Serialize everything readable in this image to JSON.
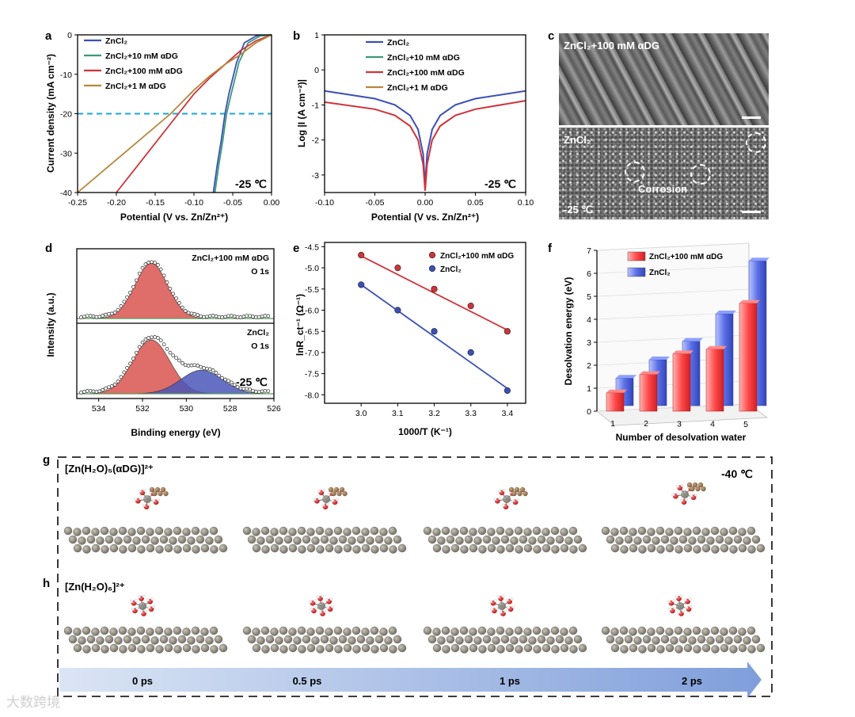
{
  "panel_letters": [
    "a",
    "b",
    "c",
    "d",
    "e",
    "f",
    "g",
    "h"
  ],
  "chart_data": [
    {
      "id": "a",
      "type": "line",
      "xlabel": "Potential (V vs. Zn/Zn²⁺)",
      "ylabel": "Current density (mA cm⁻²)",
      "xlim": [
        -0.25,
        0.0
      ],
      "ylim": [
        -40,
        0
      ],
      "xticks": [
        "-0.25",
        "-0.20",
        "-0.15",
        "-0.10",
        "-0.05",
        "0.00"
      ],
      "yticks": [
        "0",
        "-10",
        "-20",
        "-30",
        "-40"
      ],
      "annotation": "-25 ℃",
      "reference_line_y": -20,
      "series": [
        {
          "name": "ZnCl₂",
          "color": "#3b4fb8",
          "points": [
            [
              0.0,
              0
            ],
            [
              -0.02,
              -0.3
            ],
            [
              -0.035,
              -2
            ],
            [
              -0.045,
              -7
            ],
            [
              -0.055,
              -15
            ],
            [
              -0.06,
              -20
            ],
            [
              -0.065,
              -27
            ],
            [
              -0.07,
              -33
            ],
            [
              -0.075,
              -40
            ]
          ]
        },
        {
          "name": "ZnCl₂+10 mM αDG",
          "color": "#3a9a7a",
          "points": [
            [
              0.0,
              0
            ],
            [
              -0.015,
              -0.3
            ],
            [
              -0.03,
              -2
            ],
            [
              -0.042,
              -7
            ],
            [
              -0.052,
              -15
            ],
            [
              -0.058,
              -20
            ],
            [
              -0.063,
              -27
            ],
            [
              -0.068,
              -33
            ],
            [
              -0.073,
              -40
            ]
          ]
        },
        {
          "name": "ZnCl₂+100 mM αDG",
          "color": "#d0333a",
          "points": [
            [
              0.0,
              0
            ],
            [
              -0.02,
              -1.5
            ],
            [
              -0.04,
              -4
            ],
            [
              -0.06,
              -7.5
            ],
            [
              -0.08,
              -11
            ],
            [
              -0.1,
              -15
            ],
            [
              -0.12,
              -20
            ],
            [
              -0.16,
              -30
            ],
            [
              -0.2,
              -40
            ]
          ]
        },
        {
          "name": "ZnCl₂+1 M αDG",
          "color": "#b8863b",
          "points": [
            [
              0.0,
              0
            ],
            [
              -0.02,
              -2
            ],
            [
              -0.04,
              -5
            ],
            [
              -0.06,
              -7.5
            ],
            [
              -0.08,
              -10.5
            ],
            [
              -0.1,
              -14
            ],
            [
              -0.13,
              -20
            ],
            [
              -0.19,
              -30
            ],
            [
              -0.25,
              -40
            ]
          ]
        }
      ]
    },
    {
      "id": "b",
      "type": "line",
      "xlabel": "Potential (V vs. Zn/Zn²⁺)",
      "ylabel": "Log |I (A cm⁻²)|",
      "xlim": [
        -0.1,
        0.1
      ],
      "ylim": [
        -3.5,
        1
      ],
      "xticks": [
        "-0.10",
        "-0.05",
        "0.00",
        "0.05",
        "0.10"
      ],
      "yticks": [
        "1",
        "0",
        "-1",
        "-2",
        "-3"
      ],
      "annotation": "-25 ℃",
      "series": [
        {
          "name": "ZnCl₂",
          "color": "#3b4fb8",
          "points": [
            [
              -0.1,
              -0.6
            ],
            [
              -0.05,
              -0.82
            ],
            [
              -0.03,
              -1.0
            ],
            [
              -0.015,
              -1.3
            ],
            [
              -0.007,
              -1.7
            ],
            [
              -0.002,
              -2.4
            ],
            [
              0.0,
              -3.3
            ],
            [
              0.002,
              -2.4
            ],
            [
              0.007,
              -1.7
            ],
            [
              0.015,
              -1.3
            ],
            [
              0.03,
              -1.0
            ],
            [
              0.05,
              -0.82
            ],
            [
              0.1,
              -0.6
            ]
          ]
        },
        {
          "name": "ZnCl₂+10 mM αDG",
          "color": "#3a9a7a",
          "points": []
        },
        {
          "name": "ZnCl₂+100 mM αDG",
          "color": "#d0333a",
          "points": [
            [
              -0.1,
              -0.92
            ],
            [
              -0.05,
              -1.12
            ],
            [
              -0.03,
              -1.3
            ],
            [
              -0.015,
              -1.6
            ],
            [
              -0.007,
              -2.0
            ],
            [
              -0.002,
              -2.7
            ],
            [
              0.0,
              -3.45
            ],
            [
              0.002,
              -2.7
            ],
            [
              0.007,
              -2.0
            ],
            [
              0.015,
              -1.6
            ],
            [
              0.03,
              -1.3
            ],
            [
              0.05,
              -1.12
            ],
            [
              0.1,
              -0.88
            ]
          ]
        },
        {
          "name": "ZnCl₂+1 M αDG",
          "color": "#b8863b",
          "points": []
        }
      ]
    },
    {
      "id": "d",
      "type": "line",
      "xlabel": "Binding energy (eV)",
      "ylabel": "Intensity (a.u.)",
      "xlim": [
        535,
        526
      ],
      "xticks": [
        "534",
        "532",
        "530",
        "528",
        "526"
      ],
      "annotation": "-25 ℃",
      "subpanels": [
        {
          "label_line1": "ZnCl₂+100 mM αDG",
          "label_line2": "O 1s",
          "peaks": [
            {
              "center": 531.6,
              "width": 0.75,
              "height": 0.85,
              "color": "#d9534f"
            }
          ]
        },
        {
          "label_line1": "ZnCl₂",
          "label_line2": "O 1s",
          "peaks": [
            {
              "center": 531.6,
              "width": 0.85,
              "height": 0.82,
              "color": "#d9534f"
            },
            {
              "center": 529.3,
              "width": 0.95,
              "height": 0.36,
              "color": "#4a56b8"
            }
          ]
        }
      ]
    },
    {
      "id": "e",
      "type": "scatter",
      "xlabel": "1000/T (K⁻¹)",
      "ylabel": "lnR_ct⁻¹ (Ω⁻¹)",
      "xlim": [
        2.9,
        3.45
      ],
      "ylim": [
        -8.2,
        -4.4
      ],
      "xticks": [
        "3.0",
        "3.1",
        "3.2",
        "3.3",
        "3.4"
      ],
      "yticks": [
        "-4.5",
        "-5.0",
        "-5.5",
        "-6.0",
        "-6.5",
        "-7.0",
        "-7.5",
        "-8.0"
      ],
      "series": [
        {
          "name": "ZnCl₂+100 mM αDG",
          "color": "#d0333a",
          "x": [
            3.0,
            3.1,
            3.2,
            3.3,
            3.4
          ],
          "y": [
            -4.7,
            -5.0,
            -5.5,
            -5.9,
            -6.5
          ],
          "fit": [
            [
              3.0,
              -4.72
            ],
            [
              3.4,
              -6.47
            ]
          ]
        },
        {
          "name": "ZnCl₂",
          "color": "#3b4fb8",
          "x": [
            3.0,
            3.1,
            3.2,
            3.3,
            3.4
          ],
          "y": [
            -5.4,
            -6.0,
            -6.5,
            -7.0,
            -7.9
          ],
          "fit": [
            [
              3.0,
              -5.4
            ],
            [
              3.4,
              -7.85
            ]
          ]
        }
      ]
    },
    {
      "id": "f",
      "type": "bar",
      "xlabel": "Number of desolvation water",
      "ylabel": "Desolvation energy (eV)",
      "categories": [
        "1",
        "2",
        "3",
        "4",
        "5"
      ],
      "ylim": [
        0,
        7
      ],
      "yticks": [
        "0",
        "1",
        "2",
        "3",
        "4",
        "5",
        "6",
        "7"
      ],
      "series": [
        {
          "name": "ZnCl₂+100 mM αDG",
          "color": "#e8383c",
          "values": [
            0.8,
            1.6,
            2.5,
            2.7,
            4.7
          ]
        },
        {
          "name": "ZnCl₂",
          "color": "#4a63d8",
          "values": [
            1.2,
            2.0,
            2.8,
            4.0,
            6.3
          ]
        }
      ]
    }
  ],
  "panel_c": {
    "top_label": "ZnCl₂+100 mM αDG",
    "bottom_label": "ZnCl₂",
    "bottom_note": "Corrosion",
    "bottom_temp": "-25 ℃"
  },
  "panel_g": {
    "title": "[Zn(H₂O)₅(αDG)]²⁺",
    "temp": "-40 ℃"
  },
  "panel_h": {
    "title": "[Zn(H₂O)₆]²⁺"
  },
  "timeline": [
    "0 ps",
    "0.5 ps",
    "1 ps",
    "2 ps"
  ],
  "watermark": "大数跨境"
}
